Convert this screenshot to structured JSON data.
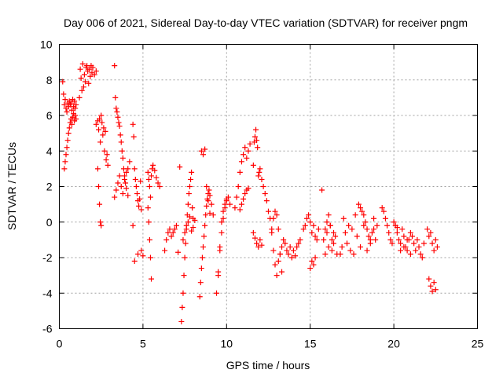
{
  "chart_data": {
    "type": "scatter",
    "title": "Day 006 of 2021, Sidereal Day-to-day VTEC variation (SDTVAR) for receiver pngm",
    "xlabel": "GPS time / hours",
    "ylabel": "SDTVAR / TECUs",
    "xlim": [
      0,
      25
    ],
    "ylim": [
      -6,
      10
    ],
    "xticks": [
      0,
      5,
      10,
      15,
      20,
      25
    ],
    "yticks": [
      -6,
      -4,
      -2,
      0,
      2,
      4,
      6,
      8,
      10
    ],
    "xtick_labels": [
      "0",
      "5",
      "10",
      "15",
      "20",
      "25"
    ],
    "ytick_labels": [
      "-6",
      "-4",
      "-2",
      "0",
      "2",
      "4",
      "6",
      "8",
      "10"
    ],
    "grid": true,
    "marker": "+",
    "color": "#ff0000",
    "series": [
      {
        "name": "pngm",
        "x": [
          0.2,
          0.25,
          0.3,
          0.35,
          0.4,
          0.45,
          0.5,
          0.55,
          0.6,
          0.65,
          0.7,
          0.75,
          0.8,
          0.85,
          0.9,
          0.95,
          1.0,
          0.3,
          0.35,
          0.4,
          0.45,
          0.5,
          0.55,
          0.6,
          0.65,
          0.7,
          0.75,
          0.8,
          0.85,
          0.9,
          0.95,
          1.0,
          1.2,
          1.25,
          1.3,
          1.35,
          1.4,
          1.45,
          1.5,
          1.55,
          1.6,
          1.65,
          1.7,
          1.75,
          1.8,
          1.85,
          1.9,
          1.95,
          2.0,
          2.1,
          2.2,
          2.2,
          2.3,
          2.35,
          2.4,
          2.45,
          2.5,
          2.55,
          2.6,
          2.65,
          2.7,
          2.75,
          2.8,
          2.85,
          2.9,
          2.3,
          2.35,
          2.4,
          2.45,
          2.5,
          3.3,
          3.35,
          3.4,
          3.45,
          3.5,
          3.55,
          3.6,
          3.65,
          3.7,
          3.75,
          3.8,
          3.85,
          3.9,
          3.95,
          4.0,
          4.1,
          3.3,
          3.4,
          3.5,
          3.6,
          3.7,
          3.8,
          3.9,
          4.0,
          4.1,
          4.2,
          4.4,
          4.45,
          4.5,
          4.55,
          4.6,
          4.65,
          4.7,
          4.75,
          4.8,
          4.85,
          4.9,
          4.4,
          4.5,
          4.7,
          4.9,
          5.0,
          5.3,
          5.35,
          5.4,
          5.45,
          5.5,
          5.55,
          5.6,
          5.7,
          5.8,
          5.9,
          6.0,
          5.3,
          5.35,
          5.4,
          5.45,
          5.5,
          6.3,
          6.4,
          6.5,
          6.6,
          6.7,
          6.8,
          6.9,
          7.0,
          7.2,
          7.1,
          7.3,
          7.35,
          7.4,
          7.45,
          7.5,
          7.55,
          7.6,
          7.65,
          7.7,
          7.75,
          7.8,
          7.85,
          7.9,
          7.95,
          8.0,
          7.4,
          7.5,
          7.6,
          7.7,
          7.8,
          7.9,
          8.0,
          8.1,
          8.4,
          8.45,
          8.5,
          8.55,
          8.6,
          8.65,
          8.7,
          8.75,
          8.8,
          8.85,
          8.9,
          8.95,
          9.0,
          9.1,
          9.2,
          8.5,
          8.6,
          8.7,
          8.8,
          8.9,
          9.0,
          9.4,
          9.5,
          9.6,
          9.7,
          9.8,
          9.9,
          10.0,
          10.1,
          10.2,
          9.5,
          9.6,
          9.7,
          9.8,
          9.9,
          10.0,
          10.5,
          10.6,
          10.7,
          10.8,
          10.9,
          11.0,
          11.1,
          11.2,
          11.3,
          11.4,
          10.8,
          10.9,
          11.0,
          11.1,
          11.2,
          11.3,
          11.6,
          11.65,
          11.7,
          11.75,
          11.8,
          11.85,
          11.9,
          11.95,
          12.0,
          12.1,
          12.2,
          12.3,
          11.6,
          11.7,
          11.8,
          11.9,
          12.0,
          12.1,
          12.4,
          12.5,
          12.6,
          12.7,
          12.8,
          12.9,
          13.0,
          13.1,
          13.2,
          13.3,
          12.7,
          12.8,
          12.9,
          13.0,
          13.1,
          13.2,
          13.3,
          13.4,
          13.5,
          13.6,
          13.7,
          13.8,
          13.9,
          14.0,
          14.1,
          14.2,
          14.3,
          14.4,
          14.6,
          14.7,
          14.8,
          14.9,
          15.0,
          15.1,
          15.2,
          15.3,
          15.4,
          15.5,
          15.0,
          15.1,
          15.2,
          15.3,
          15.7,
          15.8,
          15.9,
          16.0,
          16.1,
          16.2,
          16.3,
          16.4,
          16.5,
          16.6,
          15.9,
          16.0,
          16.1,
          16.2,
          16.3,
          16.4,
          16.8,
          16.9,
          17.0,
          17.1,
          17.2,
          17.3,
          17.4,
          17.5,
          17.6,
          17.7,
          17.8,
          17.9,
          18.0,
          18.1,
          18.2,
          18.3,
          18.4,
          18.5,
          18.6,
          18.7,
          18.8,
          18.9,
          19.0,
          18.0,
          18.2,
          18.4,
          18.6,
          18.8,
          19.3,
          19.4,
          19.5,
          19.6,
          19.7,
          19.8,
          19.9,
          20.0,
          20.1,
          20.2,
          20.3,
          20.4,
          20.5,
          20.6,
          20.7,
          20.8,
          20.9,
          21.0,
          20.2,
          20.4,
          20.6,
          20.8,
          21.0,
          21.1,
          21.2,
          21.3,
          21.4,
          21.5,
          21.6,
          21.7,
          21.8,
          22.0,
          22.1,
          22.2,
          22.3,
          22.4,
          22.5,
          22.6,
          22.1,
          22.2,
          22.3,
          22.4,
          22.5
        ],
        "y": [
          7.9,
          7.2,
          6.6,
          6.9,
          6.4,
          6.2,
          6.7,
          6.5,
          6.8,
          6.6,
          6.7,
          6.3,
          6.9,
          6.5,
          6.8,
          6.4,
          6.6,
          3.0,
          3.4,
          3.8,
          4.2,
          4.6,
          5.0,
          5.3,
          5.6,
          5.8,
          5.5,
          5.9,
          6.1,
          5.7,
          6.0,
          5.8,
          7.0,
          8.6,
          8.1,
          7.4,
          8.9,
          7.6,
          8.3,
          7.9,
          8.7,
          8.8,
          8.5,
          7.8,
          8.6,
          8.2,
          8.8,
          8.4,
          8.7,
          8.3,
          8.5,
          5.5,
          5.7,
          5.2,
          5.8,
          4.5,
          6.0,
          5.6,
          4.9,
          5.3,
          4.0,
          5.1,
          3.5,
          3.8,
          3.2,
          3.0,
          2.0,
          1.0,
          0.0,
          -0.2,
          8.8,
          7.0,
          6.4,
          6.2,
          5.9,
          5.6,
          5.4,
          4.9,
          4.5,
          4.0,
          3.6,
          3.0,
          2.6,
          2.2,
          1.9,
          1.5,
          1.4,
          1.8,
          2.2,
          2.6,
          2.0,
          1.6,
          2.4,
          2.8,
          3.0,
          3.4,
          5.5,
          4.8,
          3.0,
          2.4,
          2.0,
          1.6,
          1.2,
          0.9,
          1.3,
          2.3,
          0.7,
          -0.2,
          -2.2,
          -1.8,
          -1.6,
          -1.9,
          2.8,
          2.4,
          2.0,
          1.4,
          2.6,
          3.0,
          3.2,
          2.9,
          2.5,
          2.2,
          2.0,
          0.8,
          0.0,
          -1.0,
          -2.0,
          -3.2,
          -1.6,
          -1.0,
          -0.6,
          -0.4,
          -0.8,
          -0.6,
          -0.4,
          -0.2,
          3.1,
          -1.7,
          -5.6,
          -4.8,
          -4.0,
          -3.0,
          -2.0,
          -1.2,
          -0.4,
          0.4,
          1.0,
          1.6,
          2.0,
          2.4,
          2.8,
          0.8,
          0.2,
          -1.0,
          -0.6,
          -0.2,
          0.0,
          0.3,
          -0.5,
          -0.3,
          0.1,
          -4.2,
          -3.4,
          -2.6,
          -2.0,
          -1.4,
          -0.8,
          -0.2,
          0.4,
          0.9,
          1.3,
          1.6,
          1.8,
          1.5,
          1.0,
          0.4,
          4.0,
          3.8,
          4.1,
          2.0,
          1.2,
          0.5,
          -4.0,
          -2.8,
          -1.6,
          -0.6,
          0.2,
          0.8,
          1.2,
          1.4,
          1.0,
          -3.0,
          -1.4,
          0.0,
          0.6,
          1.0,
          1.3,
          0.8,
          1.4,
          2.0,
          2.8,
          3.4,
          3.8,
          4.2,
          3.6,
          4.0,
          4.4,
          0.7,
          1.0,
          1.3,
          1.6,
          1.8,
          1.9,
          3.2,
          4.5,
          4.8,
          5.2,
          4.6,
          4.2,
          2.6,
          2.8,
          3.0,
          2.4,
          2.0,
          1.6,
          -0.6,
          -0.9,
          -1.2,
          -1.4,
          -1.0,
          -1.3,
          1.2,
          0.6,
          0.2,
          -0.4,
          -1.6,
          -2.4,
          -3.0,
          -2.2,
          -1.8,
          -1.4,
          -0.6,
          0.2,
          0.6,
          0.4,
          -0.4,
          -1.8,
          -2.8,
          -1.0,
          -1.2,
          -1.6,
          -1.8,
          -1.4,
          -2.0,
          -1.6,
          -1.9,
          -1.4,
          -1.2,
          -1.0,
          -0.4,
          -0.2,
          0.2,
          0.4,
          0.0,
          -0.6,
          -0.2,
          -0.8,
          -1.0,
          -0.4,
          -2.6,
          -2.2,
          -2.4,
          -2.0,
          1.8,
          -1.0,
          -1.8,
          -0.6,
          -1.4,
          -0.2,
          -1.6,
          -1.2,
          -0.8,
          -1.8,
          -0.4,
          0.0,
          0.4,
          -0.2,
          -1.0,
          -0.6,
          -1.8,
          -1.4,
          0.2,
          -0.6,
          -1.2,
          -0.2,
          -1.6,
          -0.4,
          -1.8,
          0.4,
          -0.8,
          1.0,
          0.8,
          0.6,
          0.4,
          0.0,
          -0.4,
          -0.8,
          -1.2,
          -0.6,
          0.2,
          -1.0,
          -0.2,
          -1.4,
          -0.2,
          -1.6,
          -1.0,
          -0.4,
          0.8,
          0.6,
          0.2,
          -0.2,
          -0.6,
          -1.0,
          -1.2,
          0.0,
          -0.2,
          -0.6,
          -1.0,
          -1.2,
          -0.4,
          -0.8,
          -1.4,
          -1.6,
          -1.0,
          -0.6,
          -0.3,
          -1.6,
          -1.4,
          -1.0,
          -1.8,
          -0.8,
          -1.2,
          -1.6,
          -1.0,
          -1.4,
          -1.8,
          -2.0,
          -1.2,
          -0.4,
          -0.8,
          -0.6,
          -1.2,
          -1.6,
          -1.0,
          -1.4,
          -3.2,
          -3.6,
          -3.9,
          -3.4,
          -3.8
        ]
      }
    ]
  }
}
